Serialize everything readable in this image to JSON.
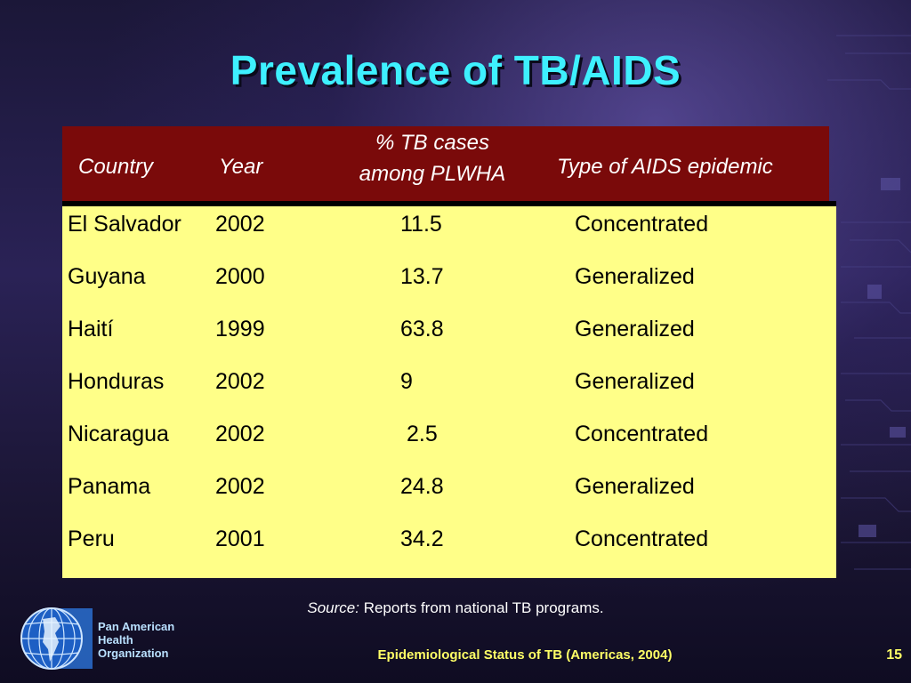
{
  "title": "Prevalence of TB/AIDS",
  "table": {
    "headers": {
      "country": "Country",
      "year": "Year",
      "pct_line1": "% TB cases",
      "pct_line2": "among PLWHA",
      "type": "Type of AIDS epidemic"
    },
    "rows": [
      {
        "country": "El Salvador",
        "year": "2002",
        "pct": "11.5",
        "type": "Concentrated"
      },
      {
        "country": "Guyana",
        "year": "2000",
        "pct": "13.7",
        "type": "Generalized"
      },
      {
        "country": "Haití",
        "year": "1999",
        "pct": "63.8",
        "type": "Generalized"
      },
      {
        "country": "Honduras",
        "year": "2002",
        "pct": "9",
        "type": "Generalized"
      },
      {
        "country": "Nicaragua",
        "year": "2002",
        "pct": "2.5",
        "type": "Concentrated"
      },
      {
        "country": "Panama",
        "year": "2002",
        "pct": "24.8",
        "type": "Generalized"
      },
      {
        "country": "Peru",
        "year": "2001",
        "pct": "34.2",
        "type": "Concentrated"
      }
    ]
  },
  "source": {
    "label": "Source:",
    "text": "Reports from national TB programs."
  },
  "logo": {
    "line1": "Pan American",
    "line2": "Health",
    "line3": "Organization"
  },
  "footer": "Epidemiological Status of TB (Americas, 2004)",
  "page_number": "15",
  "colors": {
    "title": "#3ef0ff",
    "header_bg": "#7a0a0a",
    "body_bg": "#ffff88",
    "footer_text": "#ffff66"
  }
}
